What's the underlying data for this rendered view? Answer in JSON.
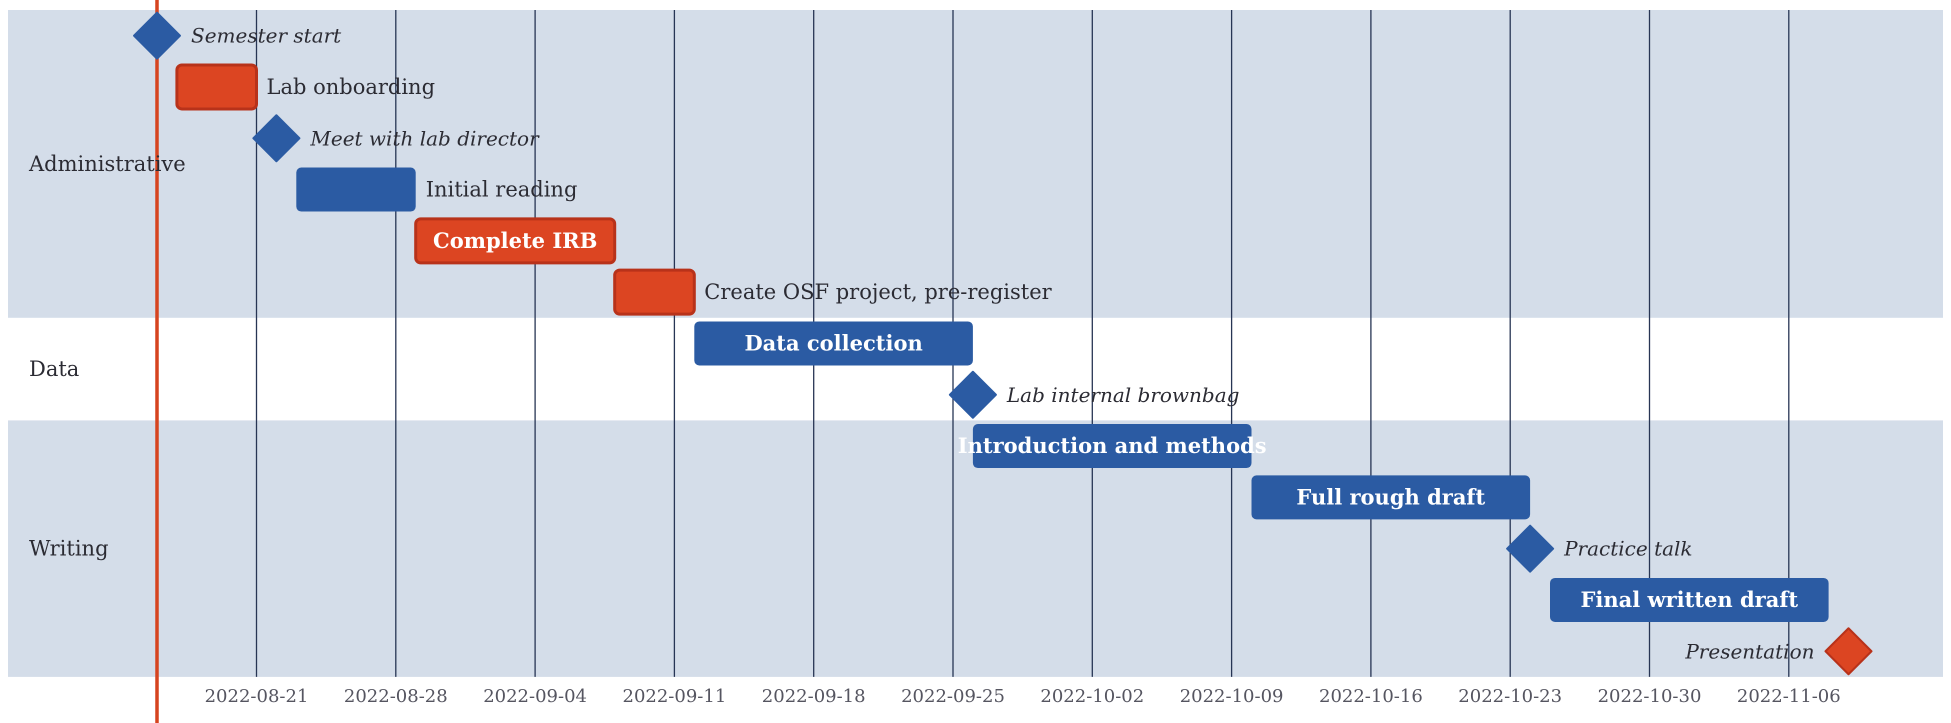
{
  "chart_data": {
    "type": "gantt",
    "title": "",
    "xlabel": "",
    "ylabel": "",
    "x_range": [
      "2022-08-12",
      "2022-11-13"
    ],
    "today": "2022-08-16",
    "grid": true,
    "legend": "none",
    "ticks": [
      "2022-08-21",
      "2022-08-28",
      "2022-09-04",
      "2022-09-11",
      "2022-09-18",
      "2022-09-25",
      "2022-10-02",
      "2022-10-09",
      "2022-10-16",
      "2022-10-23",
      "2022-10-30",
      "2022-11-06"
    ],
    "colors": {
      "blue": "#2b5ba3",
      "red": "#dc4522",
      "red_border": "#b8321a",
      "band": "#d4dde9",
      "grid": "#273554",
      "today_line": "#d6441f",
      "text": "#2b2b33",
      "tick_text": "#555560"
    },
    "groups": [
      {
        "name": "Administrative",
        "shaded": true,
        "rows": 6
      },
      {
        "name": "Data",
        "shaded": false,
        "rows": 2
      },
      {
        "name": "Writing",
        "shaded": true,
        "rows": 5
      }
    ],
    "tasks": [
      {
        "name": "Semester start",
        "group": "Administrative",
        "type": "milestone",
        "date": "2022-08-16",
        "color": "blue",
        "label_side": "right"
      },
      {
        "name": "Lab onboarding",
        "group": "Administrative",
        "type": "task",
        "start": "2022-08-17",
        "end": "2022-08-21",
        "color": "red",
        "label_side": "right"
      },
      {
        "name": "Meet with lab director",
        "group": "Administrative",
        "type": "milestone",
        "date": "2022-08-22",
        "color": "blue",
        "label_side": "right"
      },
      {
        "name": "Initial reading",
        "group": "Administrative",
        "type": "task",
        "start": "2022-08-23",
        "end": "2022-08-29",
        "color": "blue",
        "label_side": "right"
      },
      {
        "name": "Complete IRB",
        "group": "Administrative",
        "type": "task",
        "start": "2022-08-29",
        "end": "2022-09-08",
        "color": "red",
        "label_side": "inside"
      },
      {
        "name": "Create OSF project, pre-register",
        "group": "Administrative",
        "type": "task",
        "start": "2022-09-08",
        "end": "2022-09-12",
        "color": "red",
        "label_side": "right"
      },
      {
        "name": "Data collection",
        "group": "Data",
        "type": "task",
        "start": "2022-09-12",
        "end": "2022-09-26",
        "color": "blue",
        "label_side": "inside"
      },
      {
        "name": "Lab internal brownbag",
        "group": "Data",
        "type": "milestone",
        "date": "2022-09-26",
        "color": "blue",
        "label_side": "right"
      },
      {
        "name": "Introduction and methods",
        "group": "Writing",
        "type": "task",
        "start": "2022-09-26",
        "end": "2022-10-10",
        "color": "blue",
        "label_side": "inside"
      },
      {
        "name": "Full rough draft",
        "group": "Writing",
        "type": "task",
        "start": "2022-10-10",
        "end": "2022-10-24",
        "color": "blue",
        "label_side": "inside"
      },
      {
        "name": "Practice talk",
        "group": "Writing",
        "type": "milestone",
        "date": "2022-10-24",
        "color": "blue",
        "label_side": "right"
      },
      {
        "name": "Final written draft",
        "group": "Writing",
        "type": "task",
        "start": "2022-10-25",
        "end": "2022-11-08",
        "color": "blue",
        "label_side": "inside"
      },
      {
        "name": "Presentation",
        "group": "Writing",
        "type": "milestone",
        "date": "2022-11-09",
        "color": "red",
        "label_side": "left"
      }
    ]
  }
}
